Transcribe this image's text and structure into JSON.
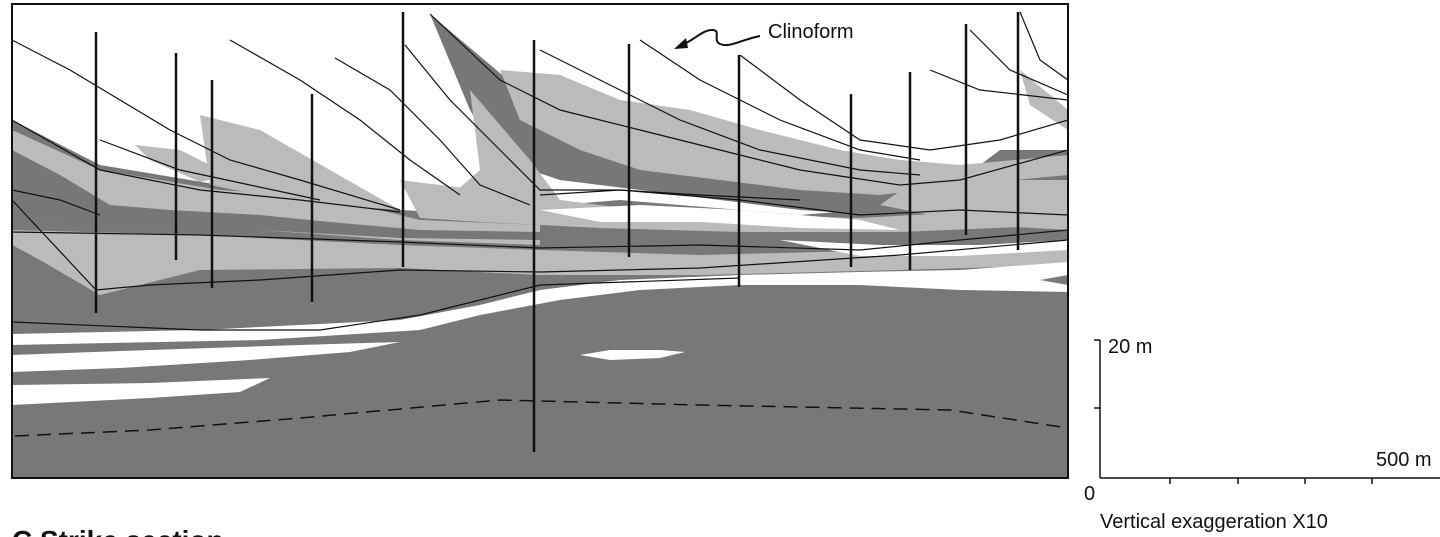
{
  "section": {
    "title": "C Strike section",
    "annotation": "Clinoform"
  },
  "scale": {
    "vertical_top": "20 m",
    "origin": "0",
    "horizontal_end": "500 m",
    "note": "Vertical exaggeration X10"
  }
}
